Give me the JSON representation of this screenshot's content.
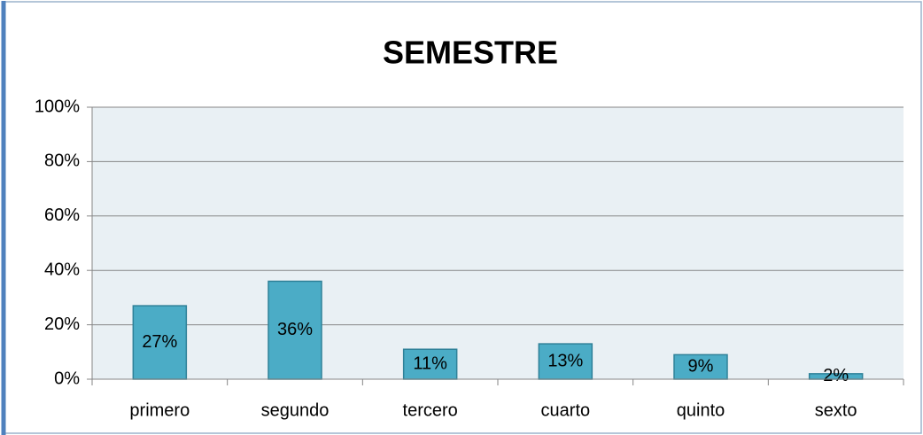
{
  "chart_data": {
    "type": "bar",
    "title": "SEMESTRE",
    "categories": [
      "primero",
      "segundo",
      "tercero",
      "cuarto",
      "quinto",
      "sexto"
    ],
    "values": [
      27,
      36,
      11,
      13,
      9,
      2
    ],
    "value_labels": [
      "27%",
      "36%",
      "11%",
      "13%",
      "9%",
      "2%"
    ],
    "color": "#4bacc6",
    "ylim": [
      0,
      100
    ],
    "yticks": [
      {
        "value": 0,
        "label": "0%"
      },
      {
        "value": 20,
        "label": "20%"
      },
      {
        "value": 40,
        "label": "40%"
      },
      {
        "value": 60,
        "label": "60%"
      },
      {
        "value": 80,
        "label": "80%"
      },
      {
        "value": 100,
        "label": "100%"
      }
    ],
    "grid": true
  }
}
